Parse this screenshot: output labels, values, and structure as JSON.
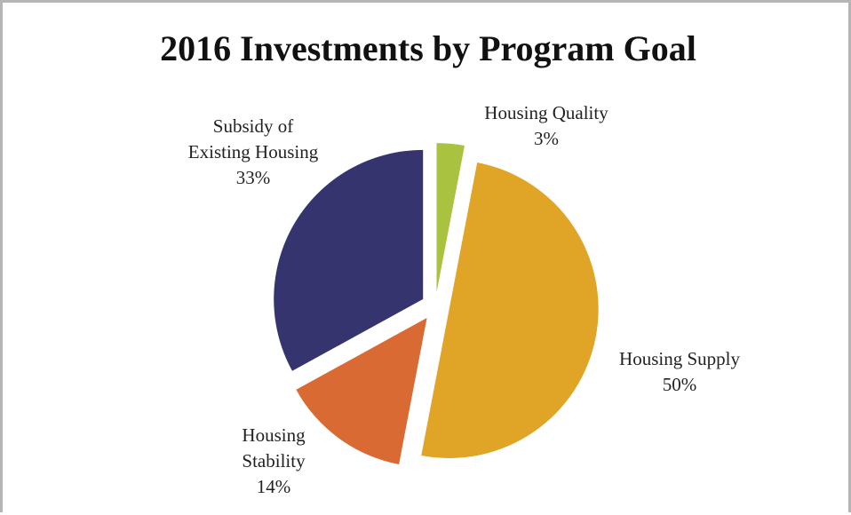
{
  "chart_data": {
    "type": "pie",
    "title": "2016 Investments by Program Goal",
    "categories": [
      "Housing Quality",
      "Housing Supply",
      "Housing Stability",
      "Subsidy of Existing Housing"
    ],
    "values": [
      3,
      50,
      14,
      33
    ],
    "value_labels": [
      "3%",
      "50%",
      "14%",
      "33%"
    ],
    "colors": [
      "#a9c23f",
      "#e0a526",
      "#d96a33",
      "#35346e"
    ]
  }
}
